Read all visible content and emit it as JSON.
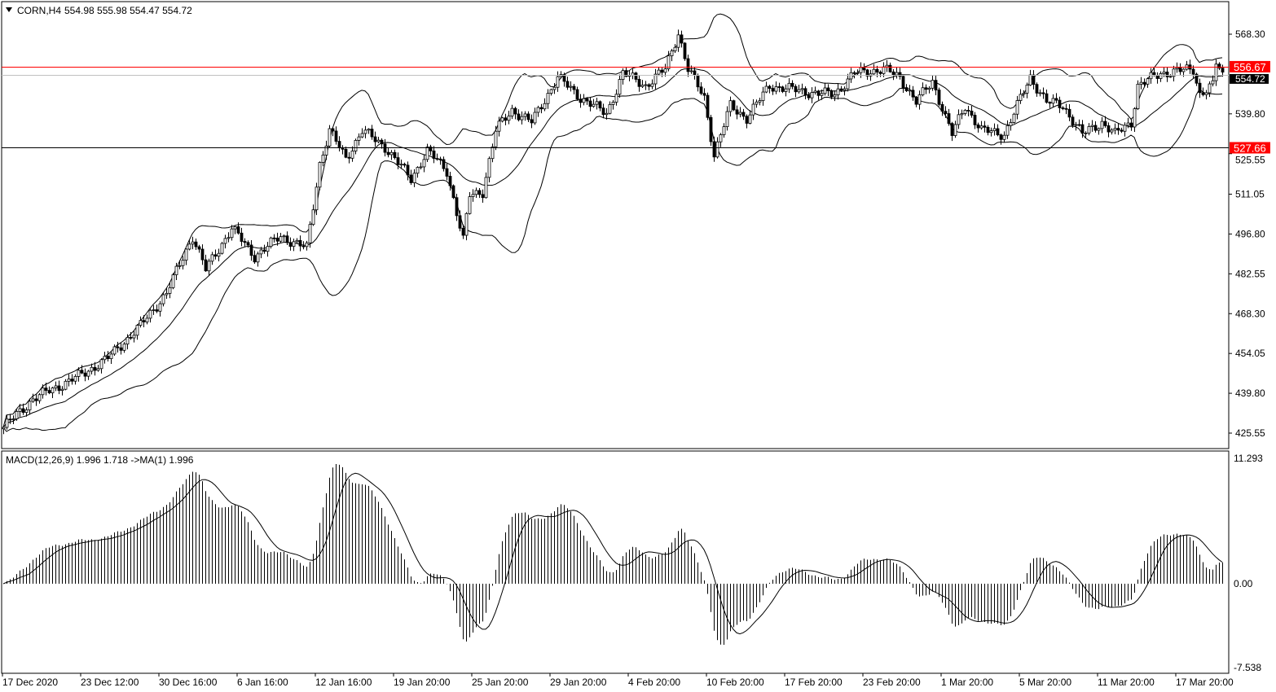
{
  "header": {
    "symbol": "CORN,H4",
    "ohlc": "554.98 555.98 554.47 554.72"
  },
  "macd_header": "MACD(12,26,9) 1.996 1.718  ->MA(1) 1.996",
  "colors": {
    "background": "#ffffff",
    "grid": "#000000",
    "resistance_line": "#ff0000",
    "label_bg": "#ff0000",
    "bull_body": "#ffffff",
    "bear_body": "#000000"
  },
  "chart_data": [
    {
      "type": "candlestick",
      "title": "CORN,H4",
      "indicators": [
        "Bollinger Bands (20, 2)"
      ],
      "ylim": [
        425.55,
        570
      ],
      "y_ticks": [
        "568.30",
        "539.80",
        "525.55",
        "511.05",
        "496.80",
        "482.55",
        "468.30",
        "454.05",
        "439.80",
        "425.55"
      ],
      "x_ticks": [
        "17 Dec 2020",
        "23 Dec 12:00",
        "30 Dec 16:00",
        "6 Jan 16:00",
        "12 Jan 16:00",
        "19 Jan 20:00",
        "25 Jan 20:00",
        "29 Jan 20:00",
        "4 Feb 20:00",
        "10 Feb 20:00",
        "17 Feb 20:00",
        "23 Feb 20:00",
        "1 Mar 20:00",
        "5 Mar 20:00",
        "11 Mar 20:00",
        "17 Mar 20:00"
      ],
      "current_price": "554.72",
      "horizontal_lines": [
        {
          "label": "556.67",
          "value": 556.67,
          "color": "#ff0000"
        },
        {
          "label": "527.66",
          "value": 527.66,
          "color": "#000000"
        }
      ],
      "close_path": [
        [
          0,
          427.6
        ],
        [
          9,
          437.8
        ],
        [
          24,
          446.5
        ],
        [
          32,
          452.4
        ],
        [
          42,
          464
        ],
        [
          50,
          475.7
        ],
        [
          58,
          496
        ],
        [
          62,
          484
        ],
        [
          70,
          499
        ],
        [
          77,
          488.8
        ],
        [
          85,
          496
        ],
        [
          93,
          491.7
        ],
        [
          97,
          522
        ],
        [
          100,
          533.9
        ],
        [
          105,
          523.7
        ],
        [
          110,
          533.9
        ],
        [
          117,
          528
        ],
        [
          125,
          516.5
        ],
        [
          130,
          526.6
        ],
        [
          136,
          519.4
        ],
        [
          141,
          494.6
        ],
        [
          143,
          510.6
        ],
        [
          147,
          512
        ],
        [
          151,
          533.9
        ],
        [
          156,
          541.2
        ],
        [
          162,
          536.8
        ],
        [
          170,
          552.9
        ],
        [
          177,
          545.6
        ],
        [
          185,
          539.8
        ],
        [
          190,
          554.3
        ],
        [
          197,
          549.9
        ],
        [
          203,
          555.8
        ],
        [
          207,
          568.9
        ],
        [
          210,
          555.8
        ],
        [
          215,
          545.6
        ],
        [
          218,
          525.2
        ],
        [
          223,
          542.7
        ],
        [
          228,
          538.3
        ],
        [
          235,
          549.9
        ],
        [
          242,
          548.5
        ],
        [
          250,
          547
        ],
        [
          255,
          547
        ],
        [
          261,
          554.3
        ],
        [
          270,
          555.8
        ],
        [
          275,
          552.9
        ],
        [
          280,
          544.1
        ],
        [
          285,
          551.4
        ],
        [
          291,
          532.5
        ],
        [
          295,
          542.7
        ],
        [
          300,
          533.9
        ],
        [
          307,
          532.5
        ],
        [
          315,
          552.9
        ],
        [
          320,
          544.1
        ],
        [
          325,
          542.7
        ],
        [
          331,
          532.5
        ],
        [
          337,
          536.8
        ],
        [
          341,
          532.5
        ],
        [
          346,
          536.8
        ],
        [
          348,
          549.9
        ],
        [
          355,
          554.3
        ],
        [
          365,
          555.8
        ],
        [
          367,
          547
        ],
        [
          371,
          549.9
        ],
        [
          372,
          557.8
        ],
        [
          374,
          554.72
        ]
      ]
    },
    {
      "type": "bar+line",
      "title": "MACD(12,26,9)",
      "ylim": [
        -7.538,
        11.293
      ],
      "y_ticks": [
        "11.293",
        "0.00",
        "-7.538"
      ],
      "main_last": 1.996,
      "signal_last": 1.718
    }
  ]
}
